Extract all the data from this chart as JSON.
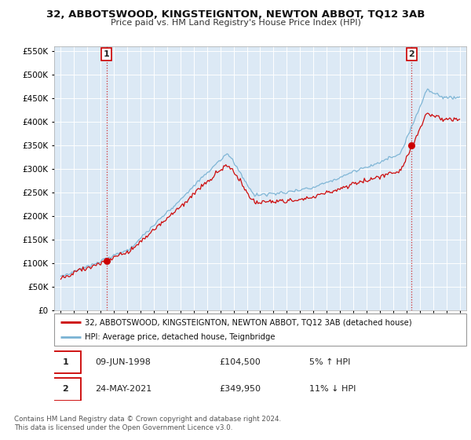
{
  "title": "32, ABBOTSWOOD, KINGSTEIGNTON, NEWTON ABBOT, TQ12 3AB",
  "subtitle": "Price paid vs. HM Land Registry's House Price Index (HPI)",
  "legend_line1": "32, ABBOTSWOOD, KINGSTEIGNTON, NEWTON ABBOT, TQ12 3AB (detached house)",
  "legend_line2": "HPI: Average price, detached house, Teignbridge",
  "annotation1_date": "09-JUN-1998",
  "annotation1_price": "£104,500",
  "annotation1_hpi": "5% ↑ HPI",
  "annotation2_date": "24-MAY-2021",
  "annotation2_price": "£349,950",
  "annotation2_hpi": "11% ↓ HPI",
  "footnote": "Contains HM Land Registry data © Crown copyright and database right 2024.\nThis data is licensed under the Open Government Licence v3.0.",
  "sale1_year": 1998.44,
  "sale1_price": 104500,
  "sale2_year": 2021.39,
  "sale2_price": 349950,
  "hpi_color": "#7ab3d4",
  "price_color": "#cc0000",
  "dot_color": "#cc0000",
  "chart_bg_color": "#dce9f5",
  "background_color": "#ffffff",
  "grid_color": "#ffffff",
  "ylim_min": 0,
  "ylim_max": 560000,
  "xlim_min": 1994.5,
  "xlim_max": 2025.5
}
